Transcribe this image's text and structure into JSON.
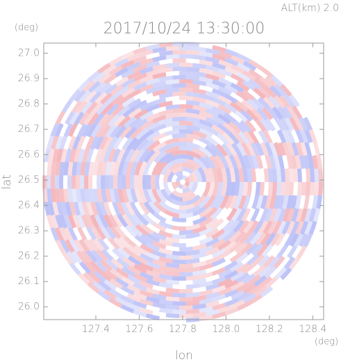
{
  "chart_data": {
    "type": "ppi",
    "title": "2017/10/24 13:30:00",
    "subtitle": "ALT(km) 2.0",
    "x_label": "lon",
    "x_unit": "(deg)",
    "y_label": "lat",
    "y_unit": "(deg)",
    "xlim": [
      127.16,
      128.45
    ],
    "xticks": [
      127.4,
      127.6,
      127.8,
      {
        "value": 128,
        "label": "128.0"
      },
      128.2,
      128.4
    ],
    "ylim": [
      25.95,
      27.04
    ],
    "yticks": [
      {
        "value": 26,
        "label": "26.0"
      },
      26.1,
      26.2,
      26.3,
      26.4,
      26.5,
      26.6,
      26.7,
      26.8,
      26.9,
      {
        "value": 27,
        "label": "27.0"
      }
    ]
  }
}
